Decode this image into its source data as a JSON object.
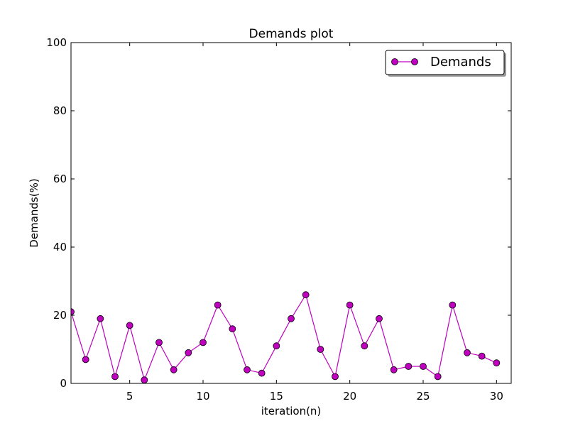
{
  "chart_data": {
    "type": "line",
    "title": "Demands plot",
    "xlabel": "iteration(n)",
    "ylabel": "Demands(%)",
    "xlim": [
      1,
      31
    ],
    "ylim": [
      0,
      100
    ],
    "xticks": [
      5,
      10,
      15,
      20,
      25,
      30
    ],
    "yticks": [
      0,
      20,
      40,
      60,
      80,
      100
    ],
    "grid": false,
    "legend_position": "top-right",
    "series": [
      {
        "name": "Demands",
        "color": "#bf00bf",
        "marker": "circle",
        "x": [
          1,
          2,
          3,
          4,
          5,
          6,
          7,
          8,
          9,
          10,
          11,
          12,
          13,
          14,
          15,
          16,
          17,
          18,
          19,
          20,
          21,
          22,
          23,
          24,
          25,
          26,
          27,
          28,
          29,
          30
        ],
        "values": [
          21,
          7,
          19,
          2,
          17,
          1,
          12,
          4,
          9,
          12,
          23,
          16,
          4,
          3,
          11,
          19,
          26,
          10,
          2,
          23,
          11,
          19,
          4,
          5,
          5,
          2,
          23,
          9,
          8,
          6
        ]
      }
    ]
  }
}
